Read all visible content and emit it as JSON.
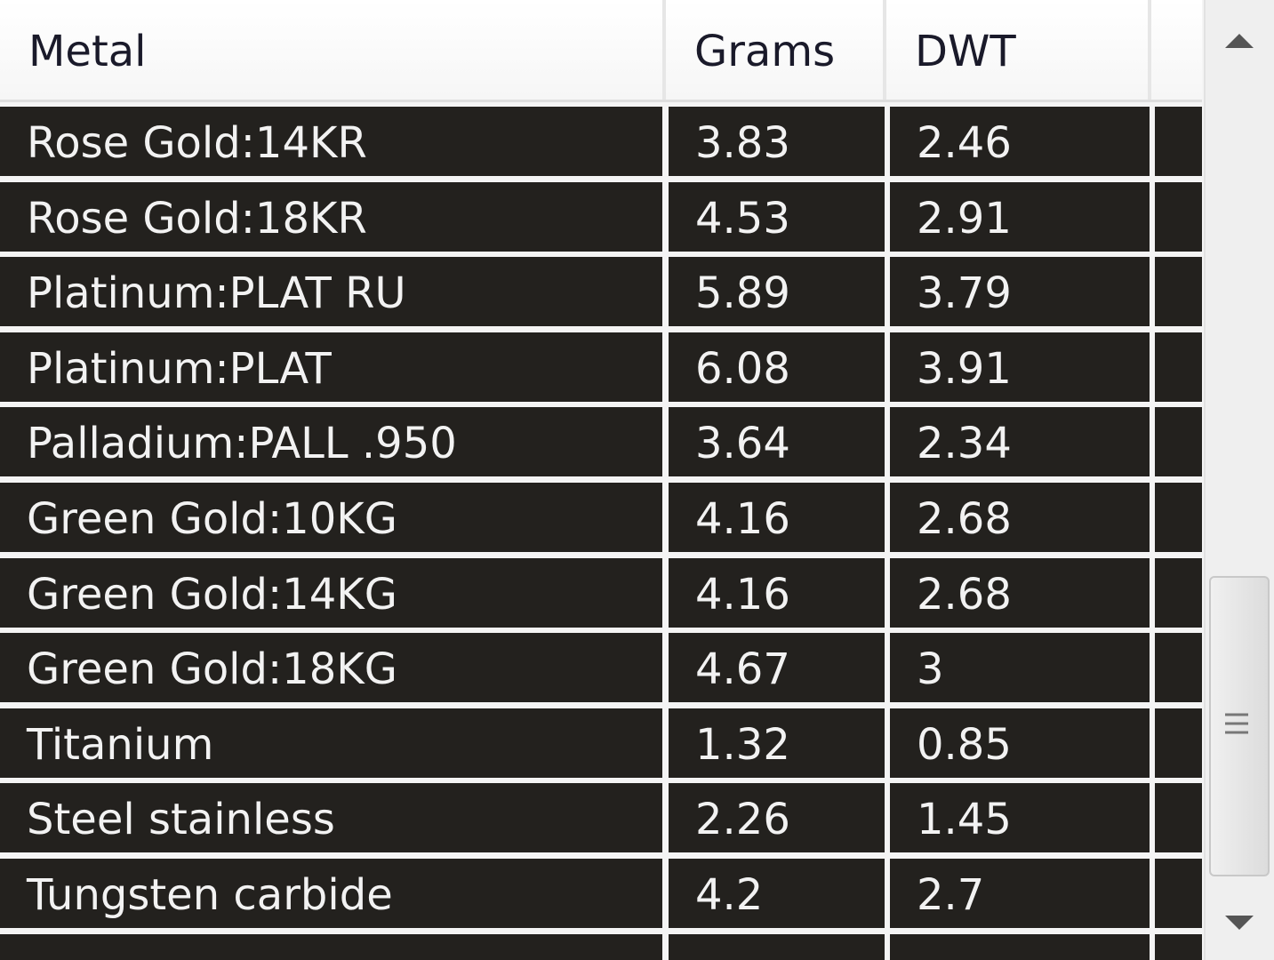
{
  "header": {
    "columns": [
      "Metal",
      "Grams",
      "DWT"
    ]
  },
  "table": {
    "rows": [
      [
        "Rose Gold:14KR",
        "3.83",
        "2.46"
      ],
      [
        "Rose Gold:18KR",
        "4.53",
        "2.91"
      ],
      [
        "Platinum:PLAT RU",
        "5.89",
        "3.79"
      ],
      [
        "Platinum:PLAT",
        "6.08",
        "3.91"
      ],
      [
        "Palladium:PALL .950",
        "3.64",
        "2.34"
      ],
      [
        "Green Gold:10KG",
        "4.16",
        "2.68"
      ],
      [
        "Green Gold:14KG",
        "4.16",
        "2.68"
      ],
      [
        "Green Gold:18KG",
        "4.67",
        "3"
      ],
      [
        "Titanium",
        "1.32",
        "0.85"
      ],
      [
        "Steel stainless",
        "2.26",
        "1.45"
      ],
      [
        "Tungsten carbide",
        "4.2",
        "2.7"
      ]
    ]
  }
}
